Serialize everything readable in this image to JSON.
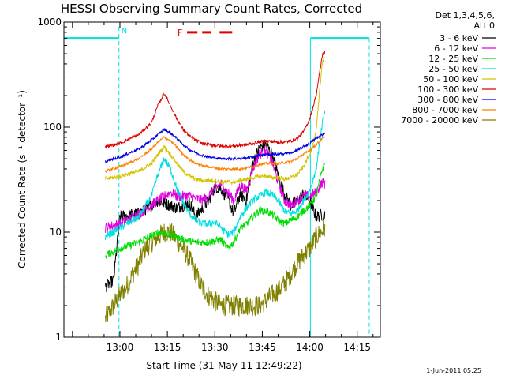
{
  "chart_data": {
    "type": "line",
    "title": "HESSI Observing Summary Count Rates, Corrected",
    "xlabel": "Start Time (31-May-11 12:49:22)",
    "ylabel": "Corrected Count Rate (s⁻¹ detector⁻¹)",
    "x_tick_labels": [
      "13:00",
      "13:15",
      "13:30",
      "13:45",
      "14:00",
      "14:15"
    ],
    "x_ticks_min": [
      60,
      75,
      90,
      105,
      120,
      135
    ],
    "y_tick_labels": [
      "1",
      "10",
      "100",
      "1000"
    ],
    "y_ticks": [
      1,
      10,
      100,
      1000
    ],
    "xlim_min": [
      42.3,
      142.3
    ],
    "ylim": [
      1,
      1000
    ],
    "yscale": "log",
    "legend_header": [
      "Det 1,3,4,5,6,",
      "Att 0"
    ],
    "annotations": {
      "night_marker": "N",
      "flare_marker": "F"
    },
    "night_periods_min": [
      [
        42.3,
        59.7
      ],
      [
        120.2,
        138.8
      ]
    ],
    "flare_segments_min": [
      [
        81.2,
        84.5
      ],
      [
        86.0,
        88.7
      ],
      [
        91.5,
        95.5
      ]
    ],
    "flare_level": 800,
    "data_start_min": 55.4,
    "data_end_min": 124.8,
    "series": [
      {
        "name": "3 - 6 keV",
        "color": "#000000",
        "values": [
          [
            55.4,
            3
          ],
          [
            58,
            3.5
          ],
          [
            60,
            14
          ],
          [
            66,
            15
          ],
          [
            72,
            20
          ],
          [
            78,
            17
          ],
          [
            82,
            19
          ],
          [
            84,
            14
          ],
          [
            88,
            20
          ],
          [
            90,
            27
          ],
          [
            92,
            26
          ],
          [
            94,
            21
          ],
          [
            96,
            15
          ],
          [
            98,
            23
          ],
          [
            100,
            20
          ],
          [
            102,
            45
          ],
          [
            104,
            62
          ],
          [
            106,
            70
          ],
          [
            108,
            55
          ],
          [
            110,
            35
          ],
          [
            112,
            23
          ],
          [
            114,
            18
          ],
          [
            116,
            20
          ],
          [
            118,
            23
          ],
          [
            120,
            20
          ],
          [
            122,
            14
          ],
          [
            124.8,
            15
          ]
        ]
      },
      {
        "name": "6 - 12 keV",
        "color": "#e000e0",
        "values": [
          [
            55.4,
            11
          ],
          [
            60,
            12
          ],
          [
            66,
            15
          ],
          [
            72,
            20
          ],
          [
            76,
            24
          ],
          [
            78,
            22
          ],
          [
            82,
            22
          ],
          [
            86,
            20
          ],
          [
            88,
            22
          ],
          [
            90,
            26
          ],
          [
            92,
            29
          ],
          [
            94,
            24
          ],
          [
            96,
            20
          ],
          [
            98,
            28
          ],
          [
            100,
            25
          ],
          [
            102,
            40
          ],
          [
            104,
            55
          ],
          [
            106,
            60
          ],
          [
            108,
            48
          ],
          [
            110,
            30
          ],
          [
            112,
            20
          ],
          [
            114,
            18
          ],
          [
            116,
            20
          ],
          [
            118,
            22
          ],
          [
            120,
            22
          ],
          [
            122,
            24
          ],
          [
            124,
            30
          ],
          [
            124.8,
            28
          ]
        ]
      },
      {
        "name": "12 - 25 keV",
        "color": "#00dd00",
        "values": [
          [
            55.4,
            6
          ],
          [
            60,
            7
          ],
          [
            66,
            8
          ],
          [
            72,
            10
          ],
          [
            76,
            9.5
          ],
          [
            80,
            8.5
          ],
          [
            84,
            8
          ],
          [
            88,
            8
          ],
          [
            92,
            8.5
          ],
          [
            94,
            7
          ],
          [
            96,
            8
          ],
          [
            98,
            11
          ],
          [
            100,
            12
          ],
          [
            102,
            14
          ],
          [
            104,
            16
          ],
          [
            106,
            16
          ],
          [
            108,
            15
          ],
          [
            110,
            13
          ],
          [
            112,
            12
          ],
          [
            114,
            13
          ],
          [
            116,
            14
          ],
          [
            118,
            16
          ],
          [
            120,
            18
          ],
          [
            122,
            22
          ],
          [
            124,
            40
          ],
          [
            124.8,
            45
          ]
        ]
      },
      {
        "name": "25 - 50 keV",
        "color": "#00e0e0",
        "values": [
          [
            55.4,
            9
          ],
          [
            60,
            11
          ],
          [
            66,
            14
          ],
          [
            70,
            22
          ],
          [
            72,
            35
          ],
          [
            74,
            50
          ],
          [
            76,
            40
          ],
          [
            78,
            26
          ],
          [
            80,
            19
          ],
          [
            82,
            15
          ],
          [
            84,
            13
          ],
          [
            86,
            12
          ],
          [
            88,
            12
          ],
          [
            90,
            12.5
          ],
          [
            92,
            11
          ],
          [
            94,
            9.5
          ],
          [
            96,
            10
          ],
          [
            98,
            14
          ],
          [
            100,
            17
          ],
          [
            102,
            20
          ],
          [
            104,
            22
          ],
          [
            106,
            24
          ],
          [
            108,
            23
          ],
          [
            110,
            20
          ],
          [
            112,
            16
          ],
          [
            114,
            15
          ],
          [
            116,
            16
          ],
          [
            118,
            20
          ],
          [
            120,
            25
          ],
          [
            122,
            40
          ],
          [
            124,
            110
          ],
          [
            124.8,
            140
          ]
        ]
      },
      {
        "name": "50 - 100 keV",
        "color": "#d4c400",
        "values": [
          [
            55.4,
            32
          ],
          [
            60,
            34
          ],
          [
            66,
            38
          ],
          [
            70,
            45
          ],
          [
            72,
            55
          ],
          [
            74,
            65
          ],
          [
            76,
            55
          ],
          [
            78,
            45
          ],
          [
            80,
            38
          ],
          [
            82,
            34
          ],
          [
            84,
            32
          ],
          [
            86,
            31
          ],
          [
            88,
            31
          ],
          [
            90,
            31
          ],
          [
            92,
            30
          ],
          [
            94,
            30
          ],
          [
            96,
            30
          ],
          [
            98,
            31
          ],
          [
            100,
            32
          ],
          [
            102,
            33
          ],
          [
            104,
            34
          ],
          [
            106,
            34
          ],
          [
            108,
            33
          ],
          [
            110,
            33
          ],
          [
            112,
            32
          ],
          [
            114,
            33
          ],
          [
            116,
            35
          ],
          [
            118,
            42
          ],
          [
            120,
            55
          ],
          [
            122,
            90
          ],
          [
            124,
            430
          ],
          [
            124.8,
            470
          ]
        ]
      },
      {
        "name": "100 - 300 keV",
        "color": "#e00000",
        "values": [
          [
            55.4,
            65
          ],
          [
            60,
            70
          ],
          [
            66,
            85
          ],
          [
            70,
            110
          ],
          [
            72,
            160
          ],
          [
            74,
            210
          ],
          [
            76,
            160
          ],
          [
            78,
            120
          ],
          [
            80,
            95
          ],
          [
            82,
            82
          ],
          [
            84,
            75
          ],
          [
            86,
            70
          ],
          [
            88,
            68
          ],
          [
            90,
            67
          ],
          [
            92,
            66
          ],
          [
            94,
            66
          ],
          [
            96,
            66
          ],
          [
            98,
            67
          ],
          [
            100,
            68
          ],
          [
            102,
            70
          ],
          [
            104,
            72
          ],
          [
            106,
            74
          ],
          [
            108,
            73
          ],
          [
            110,
            72
          ],
          [
            112,
            72
          ],
          [
            114,
            74
          ],
          [
            116,
            78
          ],
          [
            118,
            90
          ],
          [
            120,
            120
          ],
          [
            122,
            200
          ],
          [
            124,
            490
          ],
          [
            124.8,
            520
          ]
        ]
      },
      {
        "name": "300 - 800 keV",
        "color": "#0000e0",
        "values": [
          [
            55.4,
            47
          ],
          [
            60,
            52
          ],
          [
            66,
            62
          ],
          [
            70,
            75
          ],
          [
            72,
            85
          ],
          [
            74,
            95
          ],
          [
            76,
            88
          ],
          [
            78,
            78
          ],
          [
            80,
            68
          ],
          [
            82,
            61
          ],
          [
            84,
            57
          ],
          [
            86,
            54
          ],
          [
            88,
            52
          ],
          [
            90,
            51
          ],
          [
            92,
            50
          ],
          [
            94,
            50
          ],
          [
            96,
            50
          ],
          [
            98,
            50
          ],
          [
            100,
            51
          ],
          [
            102,
            52
          ],
          [
            104,
            54
          ],
          [
            106,
            55
          ],
          [
            108,
            55
          ],
          [
            110,
            55
          ],
          [
            112,
            56
          ],
          [
            114,
            57
          ],
          [
            116,
            60
          ],
          [
            118,
            65
          ],
          [
            120,
            70
          ],
          [
            122,
            78
          ],
          [
            124,
            85
          ],
          [
            124.8,
            88
          ]
        ]
      },
      {
        "name": "800 - 7000 keV",
        "color": "#ff7f00",
        "values": [
          [
            55.4,
            38
          ],
          [
            60,
            42
          ],
          [
            66,
            50
          ],
          [
            70,
            62
          ],
          [
            72,
            72
          ],
          [
            74,
            80
          ],
          [
            76,
            74
          ],
          [
            78,
            64
          ],
          [
            80,
            55
          ],
          [
            82,
            49
          ],
          [
            84,
            45
          ],
          [
            86,
            43
          ],
          [
            88,
            42
          ],
          [
            90,
            41
          ],
          [
            92,
            40
          ],
          [
            94,
            40
          ],
          [
            96,
            40
          ],
          [
            98,
            40
          ],
          [
            100,
            41
          ],
          [
            102,
            42
          ],
          [
            104,
            44
          ],
          [
            106,
            45
          ],
          [
            108,
            45
          ],
          [
            110,
            45
          ],
          [
            112,
            46
          ],
          [
            114,
            47
          ],
          [
            116,
            50
          ],
          [
            118,
            55
          ],
          [
            120,
            60
          ],
          [
            122,
            68
          ],
          [
            124,
            78
          ],
          [
            124.8,
            80
          ]
        ]
      },
      {
        "name": "7000 - 20000 keV",
        "color": "#808000",
        "values": [
          [
            55.4,
            1.5
          ],
          [
            58,
            2
          ],
          [
            60,
            2.5
          ],
          [
            62,
            3
          ],
          [
            64,
            4
          ],
          [
            66,
            5
          ],
          [
            68,
            7
          ],
          [
            70,
            8
          ],
          [
            72,
            9
          ],
          [
            74,
            10
          ],
          [
            76,
            10
          ],
          [
            78,
            8.5
          ],
          [
            80,
            7
          ],
          [
            82,
            5.5
          ],
          [
            84,
            4
          ],
          [
            86,
            3
          ],
          [
            88,
            2.5
          ],
          [
            90,
            2.2
          ],
          [
            92,
            2
          ],
          [
            94,
            2
          ],
          [
            96,
            2
          ],
          [
            98,
            2
          ],
          [
            100,
            2
          ],
          [
            102,
            2
          ],
          [
            104,
            2
          ],
          [
            106,
            2.2
          ],
          [
            108,
            2.5
          ],
          [
            110,
            2.8
          ],
          [
            112,
            3.2
          ],
          [
            114,
            4
          ],
          [
            116,
            5
          ],
          [
            118,
            6
          ],
          [
            120,
            7
          ],
          [
            122,
            9
          ],
          [
            124.8,
            11
          ]
        ]
      }
    ]
  },
  "footer": {
    "date_stamp": "1-Jun-2011 05:25"
  }
}
